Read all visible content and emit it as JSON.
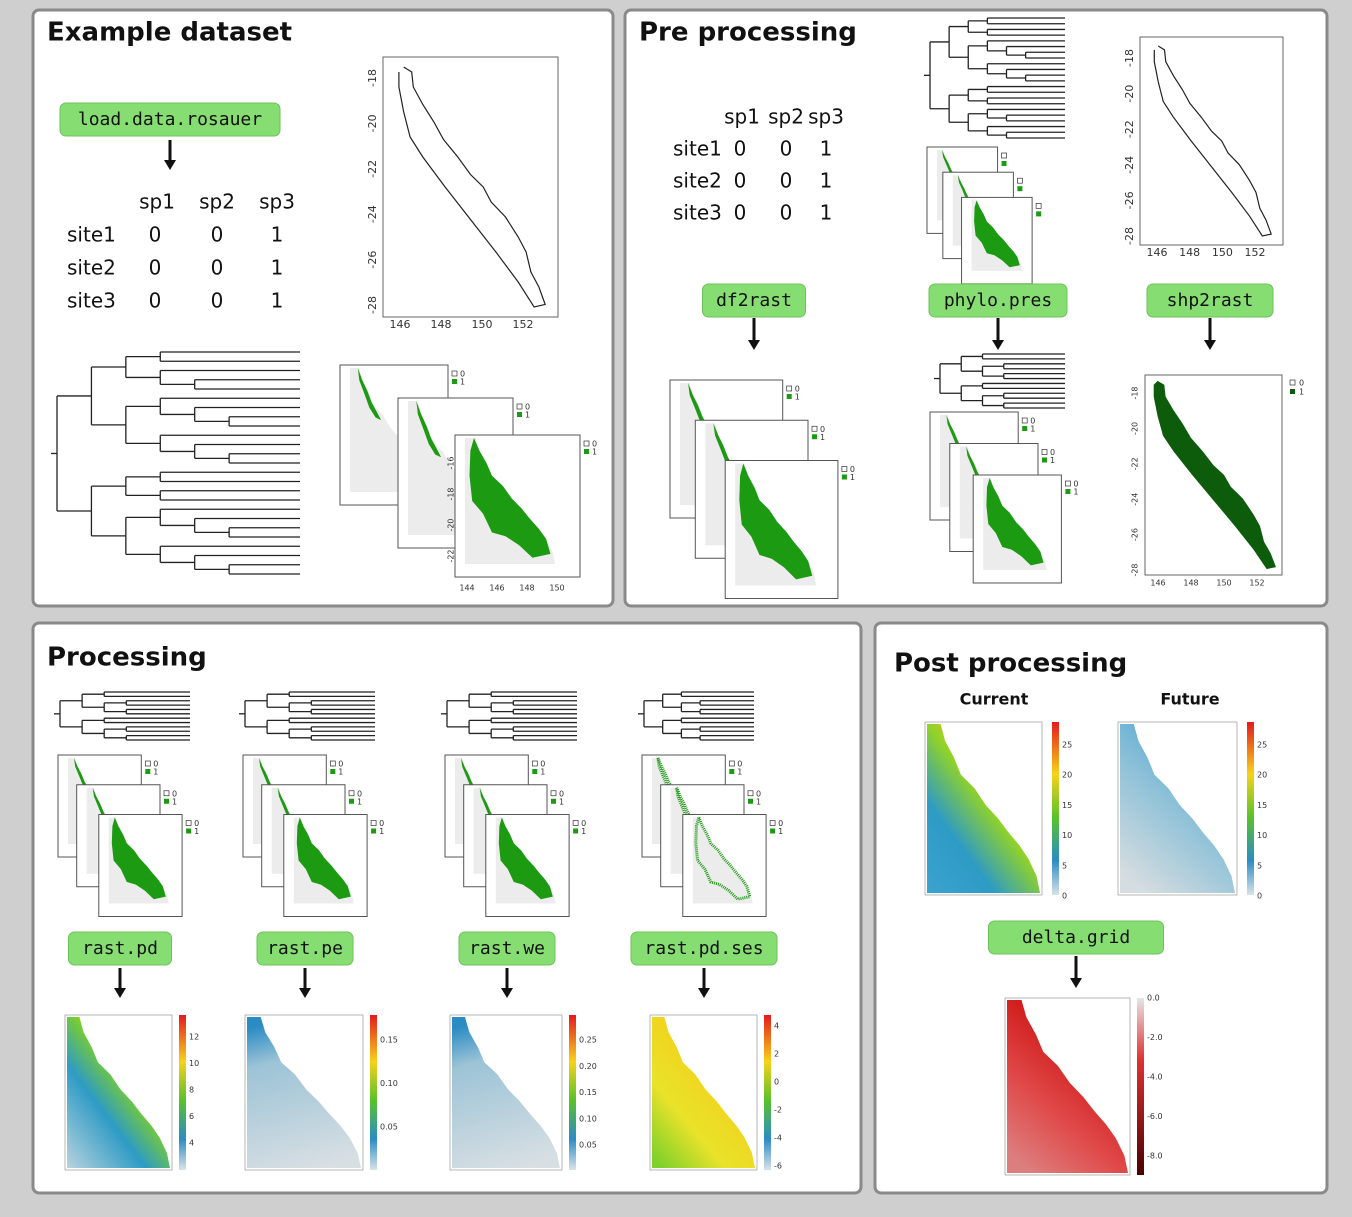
{
  "raster_legend": [
    "0",
    "1"
  ],
  "example": {
    "title": "Example dataset",
    "function": "load.data.rosauer",
    "table": {
      "header": [
        "sp1",
        "sp2",
        "sp3"
      ],
      "rows": [
        {
          "site": "site1",
          "values": [
            0,
            0,
            1
          ]
        },
        {
          "site": "site2",
          "values": [
            0,
            0,
            1
          ]
        },
        {
          "site": "site3",
          "values": [
            0,
            0,
            1
          ]
        }
      ]
    },
    "map": {
      "xticks": [
        "146",
        "148",
        "150",
        "152"
      ],
      "yticks": [
        "-18",
        "-20",
        "-22",
        "-24",
        "-26",
        "-28"
      ]
    },
    "raster": {
      "xticks": [
        "144",
        "146",
        "148",
        "150"
      ],
      "yticks": [
        "-16",
        "-18",
        "-20",
        "-22"
      ]
    }
  },
  "pre": {
    "title": "Pre processing",
    "table": {
      "header": [
        "sp1",
        "sp2",
        "sp3"
      ],
      "rows": [
        {
          "site": "site1",
          "values": [
            0,
            0,
            1
          ]
        },
        {
          "site": "site2",
          "values": [
            0,
            0,
            1
          ]
        },
        {
          "site": "site3",
          "values": [
            0,
            0,
            1
          ]
        }
      ]
    },
    "functions": [
      "df2rast",
      "phylo.pres",
      "shp2rast"
    ],
    "map": {
      "xticks": [
        "146",
        "148",
        "150",
        "152"
      ],
      "yticks": [
        "-18",
        "-20",
        "-22",
        "-24",
        "-26",
        "-28"
      ]
    },
    "shp_raster": {
      "xticks": [
        "146",
        "148",
        "150",
        "152"
      ],
      "yticks": [
        "-18",
        "-20",
        "-22",
        "-24",
        "-26",
        "-28"
      ]
    }
  },
  "processing": {
    "title": "Processing",
    "functions": [
      "rast.pd",
      "rast.pe",
      "rast.we",
      "rast.pd.ses"
    ],
    "colorbars": [
      [
        "12",
        "10",
        "8",
        "6",
        "4"
      ],
      [
        "0.15",
        "0.10",
        "0.05"
      ],
      [
        "0.25",
        "0.20",
        "0.15",
        "0.10",
        "0.05"
      ],
      [
        "4",
        "2",
        "0",
        "-2",
        "-4",
        "-6"
      ]
    ]
  },
  "post": {
    "title": "Post processing",
    "current": "Current",
    "future": "Future",
    "current_colorbar": [
      "25",
      "20",
      "15",
      "10",
      "5",
      "0"
    ],
    "future_colorbar": [
      "25",
      "20",
      "15",
      "10",
      "5",
      "0"
    ],
    "function": "delta.grid",
    "delta_colorbar": [
      "0.0",
      "-2.0",
      "-4.0",
      "-6.0",
      "-8.0"
    ]
  }
}
